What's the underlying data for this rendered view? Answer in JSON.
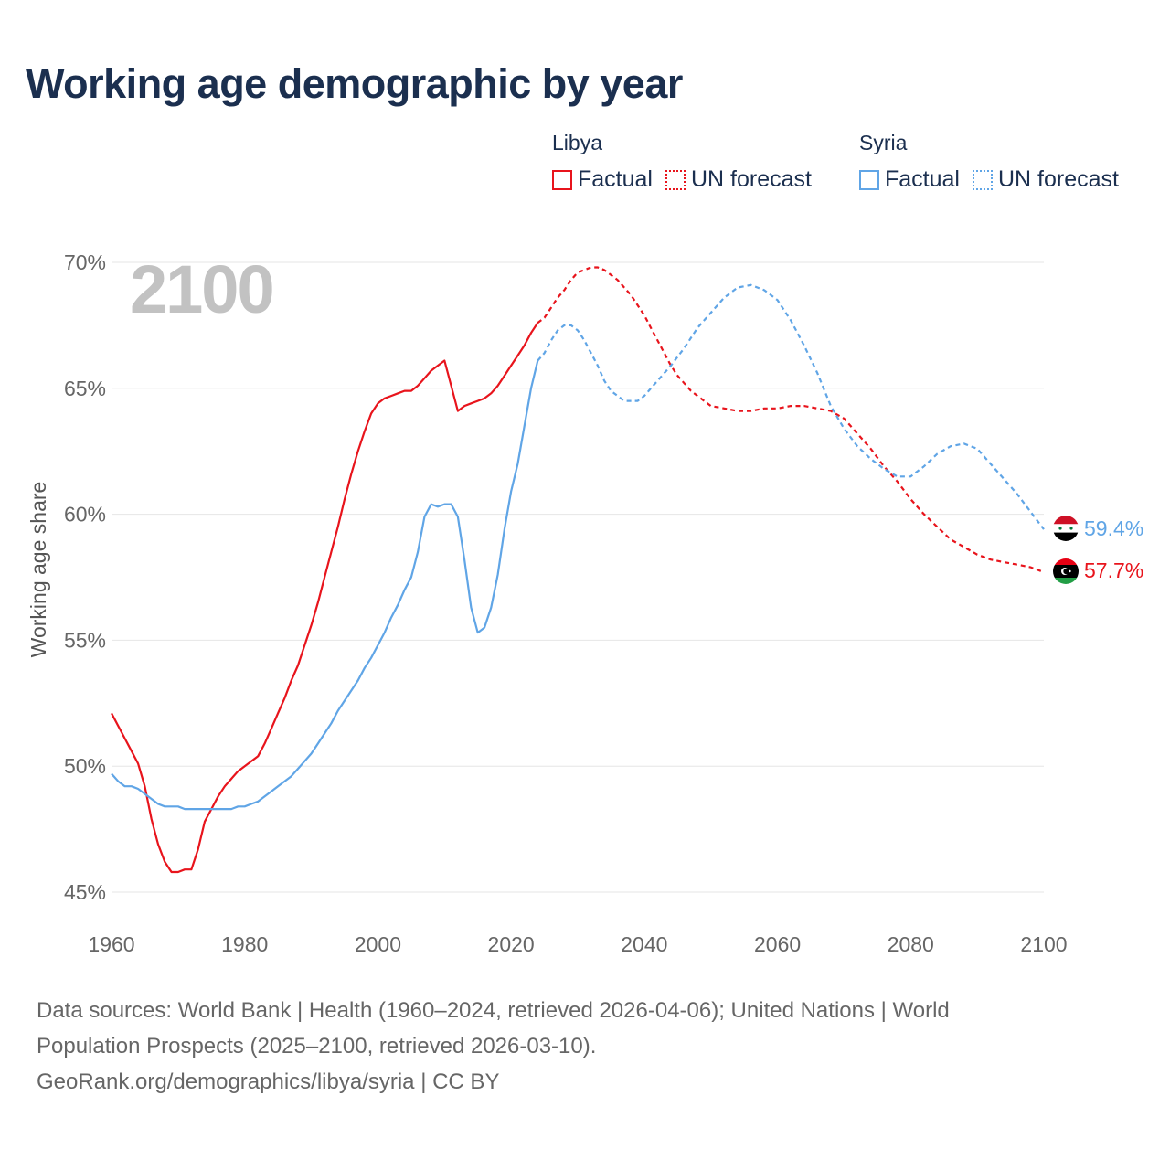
{
  "title": "Working age demographic by year",
  "legend": {
    "libya": {
      "name": "Libya",
      "factual": "Factual",
      "forecast": "UN forecast",
      "color": "#e8141c"
    },
    "syria": {
      "name": "Syria",
      "factual": "Factual",
      "forecast": "UN forecast",
      "color": "#60a5e6"
    }
  },
  "footer": {
    "line1": "Data sources: World Bank | Health (1960–2024, retrieved 2026-04-06); United Nations | World",
    "line2": "Population Prospects (2025–2100, retrieved 2026-03-10).",
    "line3": "GeoRank.org/demographics/libya/syria | CC BY"
  },
  "chart_data": {
    "type": "line",
    "title": "Working age demographic by year",
    "year_label": "2100",
    "xlabel": "",
    "ylabel": "Working age share",
    "xlim": [
      1960,
      2100
    ],
    "ylim": [
      45,
      70
    ],
    "x_ticks": [
      1960,
      1980,
      2000,
      2020,
      2040,
      2060,
      2080,
      2100
    ],
    "y_ticks": [
      45,
      50,
      55,
      60,
      65,
      70
    ],
    "y_tick_labels": [
      "45%",
      "50%",
      "55%",
      "60%",
      "65%",
      "70%"
    ],
    "factual_range": [
      1960,
      2024
    ],
    "forecast_range": [
      2024,
      2100
    ],
    "series": [
      {
        "name": "Libya",
        "color": "#e8141c",
        "end_label": "57.7%",
        "points": [
          [
            1960,
            52.1
          ],
          [
            1961,
            51.6
          ],
          [
            1962,
            51.1
          ],
          [
            1963,
            50.6
          ],
          [
            1964,
            50.1
          ],
          [
            1965,
            49.2
          ],
          [
            1966,
            47.9
          ],
          [
            1967,
            46.9
          ],
          [
            1968,
            46.2
          ],
          [
            1969,
            45.8
          ],
          [
            1970,
            45.8
          ],
          [
            1971,
            45.9
          ],
          [
            1972,
            45.9
          ],
          [
            1973,
            46.7
          ],
          [
            1974,
            47.8
          ],
          [
            1975,
            48.3
          ],
          [
            1976,
            48.8
          ],
          [
            1977,
            49.2
          ],
          [
            1978,
            49.5
          ],
          [
            1979,
            49.8
          ],
          [
            1980,
            50.0
          ],
          [
            1981,
            50.2
          ],
          [
            1982,
            50.4
          ],
          [
            1983,
            50.9
          ],
          [
            1984,
            51.5
          ],
          [
            1985,
            52.1
          ],
          [
            1986,
            52.7
          ],
          [
            1987,
            53.4
          ],
          [
            1988,
            54.0
          ],
          [
            1989,
            54.8
          ],
          [
            1990,
            55.6
          ],
          [
            1991,
            56.5
          ],
          [
            1992,
            57.5
          ],
          [
            1993,
            58.5
          ],
          [
            1994,
            59.5
          ],
          [
            1995,
            60.6
          ],
          [
            1996,
            61.6
          ],
          [
            1997,
            62.5
          ],
          [
            1998,
            63.3
          ],
          [
            1999,
            64.0
          ],
          [
            2000,
            64.4
          ],
          [
            2001,
            64.6
          ],
          [
            2002,
            64.7
          ],
          [
            2003,
            64.8
          ],
          [
            2004,
            64.9
          ],
          [
            2005,
            64.9
          ],
          [
            2006,
            65.1
          ],
          [
            2007,
            65.4
          ],
          [
            2008,
            65.7
          ],
          [
            2009,
            65.9
          ],
          [
            2010,
            66.1
          ],
          [
            2011,
            65.1
          ],
          [
            2012,
            64.1
          ],
          [
            2013,
            64.3
          ],
          [
            2014,
            64.4
          ],
          [
            2015,
            64.5
          ],
          [
            2016,
            64.6
          ],
          [
            2017,
            64.8
          ],
          [
            2018,
            65.1
          ],
          [
            2019,
            65.5
          ],
          [
            2020,
            65.9
          ],
          [
            2021,
            66.3
          ],
          [
            2022,
            66.7
          ],
          [
            2023,
            67.2
          ],
          [
            2024,
            67.6
          ],
          [
            2025,
            67.8
          ],
          [
            2026,
            68.2
          ],
          [
            2027,
            68.6
          ],
          [
            2028,
            68.9
          ],
          [
            2029,
            69.3
          ],
          [
            2030,
            69.6
          ],
          [
            2031,
            69.7
          ],
          [
            2032,
            69.8
          ],
          [
            2033,
            69.8
          ],
          [
            2034,
            69.7
          ],
          [
            2035,
            69.5
          ],
          [
            2036,
            69.3
          ],
          [
            2037,
            69.0
          ],
          [
            2038,
            68.7
          ],
          [
            2039,
            68.3
          ],
          [
            2040,
            67.9
          ],
          [
            2041,
            67.4
          ],
          [
            2042,
            66.9
          ],
          [
            2043,
            66.4
          ],
          [
            2044,
            65.9
          ],
          [
            2045,
            65.5
          ],
          [
            2046,
            65.2
          ],
          [
            2047,
            64.9
          ],
          [
            2048,
            64.7
          ],
          [
            2049,
            64.5
          ],
          [
            2050,
            64.3
          ],
          [
            2052,
            64.2
          ],
          [
            2054,
            64.1
          ],
          [
            2056,
            64.1
          ],
          [
            2058,
            64.2
          ],
          [
            2060,
            64.2
          ],
          [
            2062,
            64.3
          ],
          [
            2064,
            64.3
          ],
          [
            2066,
            64.2
          ],
          [
            2068,
            64.1
          ],
          [
            2070,
            63.8
          ],
          [
            2072,
            63.2
          ],
          [
            2074,
            62.6
          ],
          [
            2076,
            61.9
          ],
          [
            2078,
            61.3
          ],
          [
            2080,
            60.6
          ],
          [
            2082,
            60.0
          ],
          [
            2084,
            59.5
          ],
          [
            2086,
            59.0
          ],
          [
            2088,
            58.7
          ],
          [
            2090,
            58.4
          ],
          [
            2092,
            58.2
          ],
          [
            2094,
            58.1
          ],
          [
            2096,
            58.0
          ],
          [
            2098,
            57.9
          ],
          [
            2100,
            57.7
          ]
        ]
      },
      {
        "name": "Syria",
        "color": "#60a5e6",
        "end_label": "59.4%",
        "points": [
          [
            1960,
            49.7
          ],
          [
            1961,
            49.4
          ],
          [
            1962,
            49.2
          ],
          [
            1963,
            49.2
          ],
          [
            1964,
            49.1
          ],
          [
            1965,
            48.9
          ],
          [
            1966,
            48.7
          ],
          [
            1967,
            48.5
          ],
          [
            1968,
            48.4
          ],
          [
            1969,
            48.4
          ],
          [
            1970,
            48.4
          ],
          [
            1971,
            48.3
          ],
          [
            1972,
            48.3
          ],
          [
            1973,
            48.3
          ],
          [
            1974,
            48.3
          ],
          [
            1975,
            48.3
          ],
          [
            1976,
            48.3
          ],
          [
            1977,
            48.3
          ],
          [
            1978,
            48.3
          ],
          [
            1979,
            48.4
          ],
          [
            1980,
            48.4
          ],
          [
            1981,
            48.5
          ],
          [
            1982,
            48.6
          ],
          [
            1983,
            48.8
          ],
          [
            1984,
            49.0
          ],
          [
            1985,
            49.2
          ],
          [
            1986,
            49.4
          ],
          [
            1987,
            49.6
          ],
          [
            1988,
            49.9
          ],
          [
            1989,
            50.2
          ],
          [
            1990,
            50.5
          ],
          [
            1991,
            50.9
          ],
          [
            1992,
            51.3
          ],
          [
            1993,
            51.7
          ],
          [
            1994,
            52.2
          ],
          [
            1995,
            52.6
          ],
          [
            1996,
            53.0
          ],
          [
            1997,
            53.4
          ],
          [
            1998,
            53.9
          ],
          [
            1999,
            54.3
          ],
          [
            2000,
            54.8
          ],
          [
            2001,
            55.3
          ],
          [
            2002,
            55.9
          ],
          [
            2003,
            56.4
          ],
          [
            2004,
            57.0
          ],
          [
            2005,
            57.5
          ],
          [
            2006,
            58.5
          ],
          [
            2007,
            59.9
          ],
          [
            2008,
            60.4
          ],
          [
            2009,
            60.3
          ],
          [
            2010,
            60.4
          ],
          [
            2011,
            60.4
          ],
          [
            2012,
            59.9
          ],
          [
            2013,
            58.2
          ],
          [
            2014,
            56.3
          ],
          [
            2015,
            55.3
          ],
          [
            2016,
            55.5
          ],
          [
            2017,
            56.3
          ],
          [
            2018,
            57.6
          ],
          [
            2019,
            59.4
          ],
          [
            2020,
            60.9
          ],
          [
            2021,
            62.0
          ],
          [
            2022,
            63.5
          ],
          [
            2023,
            65.0
          ],
          [
            2024,
            66.1
          ],
          [
            2025,
            66.4
          ],
          [
            2026,
            66.9
          ],
          [
            2027,
            67.3
          ],
          [
            2028,
            67.5
          ],
          [
            2029,
            67.5
          ],
          [
            2030,
            67.3
          ],
          [
            2031,
            66.9
          ],
          [
            2032,
            66.4
          ],
          [
            2033,
            65.9
          ],
          [
            2034,
            65.3
          ],
          [
            2035,
            64.9
          ],
          [
            2036,
            64.7
          ],
          [
            2037,
            64.5
          ],
          [
            2038,
            64.5
          ],
          [
            2039,
            64.5
          ],
          [
            2040,
            64.7
          ],
          [
            2042,
            65.3
          ],
          [
            2044,
            65.9
          ],
          [
            2046,
            66.6
          ],
          [
            2048,
            67.4
          ],
          [
            2050,
            68.0
          ],
          [
            2052,
            68.6
          ],
          [
            2054,
            69.0
          ],
          [
            2056,
            69.1
          ],
          [
            2058,
            68.9
          ],
          [
            2060,
            68.5
          ],
          [
            2062,
            67.7
          ],
          [
            2064,
            66.7
          ],
          [
            2066,
            65.6
          ],
          [
            2068,
            64.3
          ],
          [
            2070,
            63.4
          ],
          [
            2072,
            62.7
          ],
          [
            2074,
            62.2
          ],
          [
            2076,
            61.8
          ],
          [
            2078,
            61.5
          ],
          [
            2080,
            61.5
          ],
          [
            2082,
            61.9
          ],
          [
            2084,
            62.4
          ],
          [
            2086,
            62.7
          ],
          [
            2088,
            62.8
          ],
          [
            2090,
            62.6
          ],
          [
            2092,
            62.0
          ],
          [
            2094,
            61.4
          ],
          [
            2096,
            60.8
          ],
          [
            2098,
            60.1
          ],
          [
            2100,
            59.4
          ]
        ]
      }
    ]
  }
}
